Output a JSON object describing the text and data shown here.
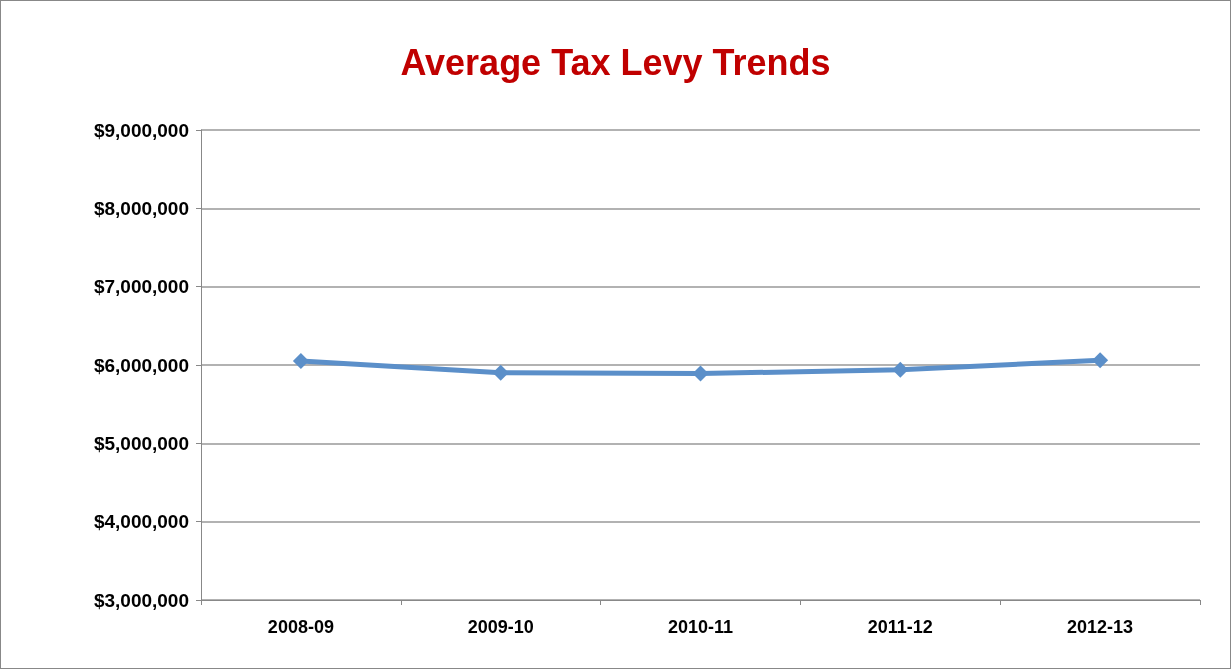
{
  "chart_data": {
    "type": "line",
    "title": "Average Tax Levy Trends",
    "categories": [
      "2008-09",
      "2009-10",
      "2010-11",
      "2011-12",
      "2012-13"
    ],
    "series": [
      {
        "color": "#5b8fc9",
        "values": [
          6050000,
          5900000,
          5890000,
          5940000,
          6060000
        ]
      }
    ],
    "ylim": [
      3000000,
      9000000
    ],
    "yticks": [
      {
        "value": 3000000,
        "label": "$3,000,000"
      },
      {
        "value": 4000000,
        "label": "$4,000,000"
      },
      {
        "value": 5000000,
        "label": "$5,000,000"
      },
      {
        "value": 6000000,
        "label": "$6,000,000"
      },
      {
        "value": 7000000,
        "label": "$7,000,000"
      },
      {
        "value": 8000000,
        "label": "$8,000,000"
      },
      {
        "value": 9000000,
        "label": "$9,000,000"
      }
    ],
    "grid": "y",
    "marker": "diamond",
    "line_style": "solid"
  }
}
